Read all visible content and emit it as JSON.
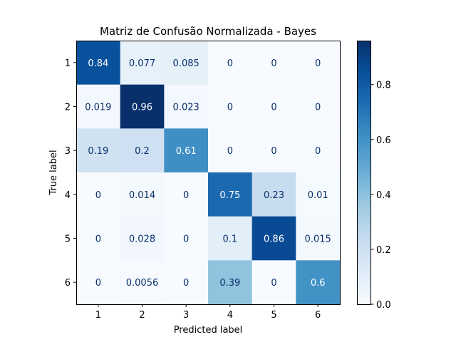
{
  "chart_data": {
    "type": "heatmap",
    "title": "Matriz de Confusão Normalizada - Bayes",
    "xlabel": "Predicted label",
    "ylabel": "True label",
    "x_categories": [
      "1",
      "2",
      "3",
      "4",
      "5",
      "6"
    ],
    "y_categories": [
      "1",
      "2",
      "3",
      "4",
      "5",
      "6"
    ],
    "values": [
      [
        0.84,
        0.077,
        0.085,
        0,
        0,
        0
      ],
      [
        0.019,
        0.96,
        0.023,
        0,
        0,
        0
      ],
      [
        0.19,
        0.2,
        0.61,
        0,
        0,
        0
      ],
      [
        0,
        0.014,
        0,
        0.75,
        0.23,
        0.01
      ],
      [
        0,
        0.028,
        0,
        0.1,
        0.86,
        0.015
      ],
      [
        0,
        0.0056,
        0,
        0.39,
        0,
        0.6
      ]
    ],
    "labels": [
      [
        "0.84",
        "0.077",
        "0.085",
        "0",
        "0",
        "0"
      ],
      [
        "0.019",
        "0.96",
        "0.023",
        "0",
        "0",
        "0"
      ],
      [
        "0.19",
        "0.2",
        "0.61",
        "0",
        "0",
        "0"
      ],
      [
        "0",
        "0.014",
        "0",
        "0.75",
        "0.23",
        "0.01"
      ],
      [
        "0",
        "0.028",
        "0",
        "0.1",
        "0.86",
        "0.015"
      ],
      [
        "0",
        "0.0056",
        "0",
        "0.39",
        "0",
        "0.6"
      ]
    ],
    "colormap": "Blues",
    "vmin": 0,
    "vmax": 0.96,
    "colorbar_ticks": [
      0.0,
      0.2,
      0.4,
      0.6,
      0.8
    ],
    "colorbar_tick_labels": [
      "0.0",
      "0.2",
      "0.4",
      "0.6",
      "0.8"
    ],
    "text_colors": {
      "dark": "#08306b",
      "light": "#ffffff"
    }
  }
}
